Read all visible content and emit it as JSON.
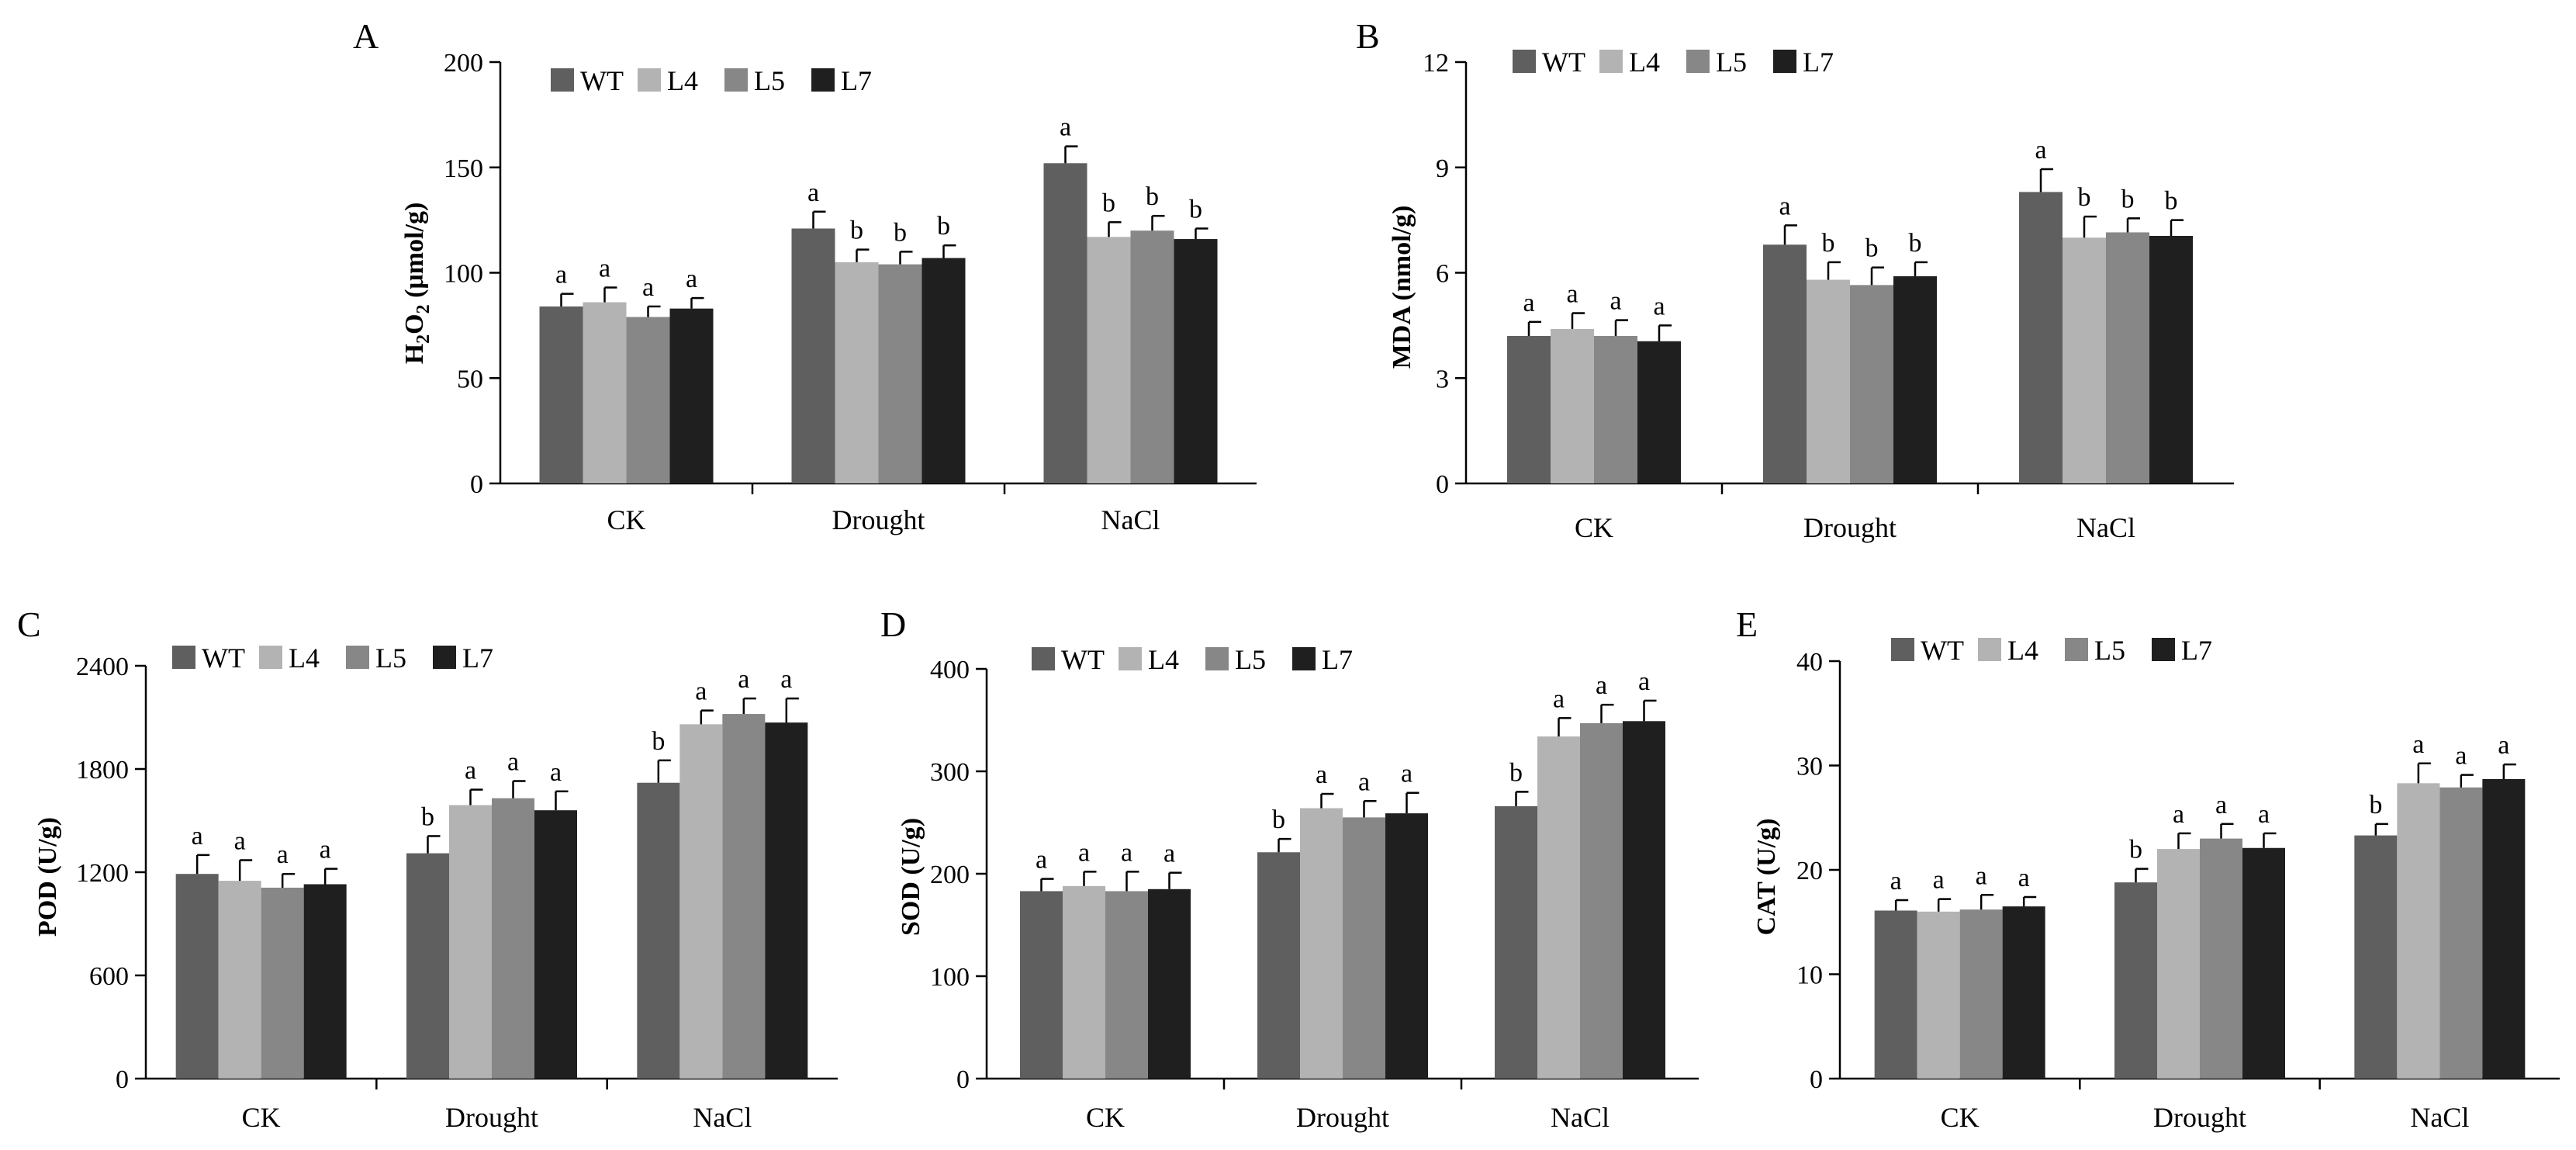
{
  "figure": {
    "groups": [
      "CK",
      "Drought",
      "NaCl"
    ],
    "legend": [
      "WT",
      "L4",
      "L5",
      "L7"
    ],
    "series_colors": [
      "#5f5f5f",
      "#b3b3b3",
      "#878787",
      "#1f1f1f"
    ]
  },
  "chart_data": [
    {
      "id": "A",
      "type": "bar",
      "panel_label": "A",
      "ylabel": "H2O2 (μmol/g)",
      "ylabel_parts": {
        "pre": "H",
        "sub1": "2",
        "mid": "O",
        "sub2": "2",
        "post": " (μmol/g)"
      },
      "categories": [
        "CK",
        "Drought",
        "NaCl"
      ],
      "ylim": [
        0,
        200
      ],
      "yticks": [
        0,
        50,
        100,
        150,
        200
      ],
      "series": [
        {
          "name": "WT",
          "values": [
            84,
            121,
            152
          ],
          "errors": [
            6,
            8,
            8
          ],
          "letters": [
            "a",
            "a",
            "a"
          ]
        },
        {
          "name": "L4",
          "values": [
            86,
            105,
            117
          ],
          "errors": [
            7,
            6,
            7
          ],
          "letters": [
            "a",
            "b",
            "b"
          ]
        },
        {
          "name": "L5",
          "values": [
            79,
            104,
            120
          ],
          "errors": [
            5,
            6,
            7
          ],
          "letters": [
            "a",
            "b",
            "b"
          ]
        },
        {
          "name": "L7",
          "values": [
            83,
            107,
            116
          ],
          "errors": [
            5,
            6,
            5
          ],
          "letters": [
            "a",
            "b",
            "b"
          ]
        }
      ]
    },
    {
      "id": "B",
      "type": "bar",
      "panel_label": "B",
      "ylabel": "MDA (nmol/g)",
      "categories": [
        "CK",
        "Drought",
        "NaCl"
      ],
      "ylim": [
        0,
        12
      ],
      "yticks": [
        0,
        3,
        6,
        9,
        12
      ],
      "series": [
        {
          "name": "WT",
          "values": [
            4.2,
            6.8,
            8.3
          ],
          "errors": [
            0.4,
            0.55,
            0.65
          ],
          "letters": [
            "a",
            "a",
            "a"
          ]
        },
        {
          "name": "L4",
          "values": [
            4.4,
            5.8,
            7.0
          ],
          "errors": [
            0.45,
            0.5,
            0.6
          ],
          "letters": [
            "a",
            "b",
            "b"
          ]
        },
        {
          "name": "L5",
          "values": [
            4.2,
            5.65,
            7.15
          ],
          "errors": [
            0.45,
            0.5,
            0.4
          ],
          "letters": [
            "a",
            "b",
            "b"
          ]
        },
        {
          "name": "L7",
          "values": [
            4.05,
            5.9,
            7.05
          ],
          "errors": [
            0.45,
            0.4,
            0.45
          ],
          "letters": [
            "a",
            "b",
            "b"
          ]
        }
      ]
    },
    {
      "id": "C",
      "type": "bar",
      "panel_label": "C",
      "ylabel": "POD (U/g)",
      "categories": [
        "CK",
        "Drought",
        "NaCl"
      ],
      "ylim": [
        0,
        2400
      ],
      "yticks": [
        0,
        600,
        1200,
        1800,
        2400
      ],
      "series": [
        {
          "name": "WT",
          "values": [
            1190,
            1310,
            1720
          ],
          "errors": [
            110,
            100,
            130
          ],
          "letters": [
            "a",
            "b",
            "b"
          ]
        },
        {
          "name": "L4",
          "values": [
            1150,
            1590,
            2060
          ],
          "errors": [
            120,
            90,
            80
          ],
          "letters": [
            "a",
            "a",
            "a"
          ]
        },
        {
          "name": "L5",
          "values": [
            1110,
            1630,
            2120
          ],
          "errors": [
            80,
            100,
            90
          ],
          "letters": [
            "a",
            "a",
            "a"
          ]
        },
        {
          "name": "L7",
          "values": [
            1130,
            1560,
            2070
          ],
          "errors": [
            90,
            110,
            140
          ],
          "letters": [
            "a",
            "a",
            "a"
          ]
        }
      ]
    },
    {
      "id": "D",
      "type": "bar",
      "panel_label": "D",
      "ylabel": "SOD (U/g)",
      "categories": [
        "CK",
        "Drought",
        "NaCl"
      ],
      "ylim": [
        0,
        400
      ],
      "yticks": [
        0,
        100,
        200,
        300,
        400
      ],
      "series": [
        {
          "name": "WT",
          "values": [
            183,
            221,
            266
          ],
          "errors": [
            12,
            13,
            14
          ],
          "letters": [
            "a",
            "b",
            "b"
          ]
        },
        {
          "name": "L4",
          "values": [
            188,
            264,
            334
          ],
          "errors": [
            14,
            14,
            18
          ],
          "letters": [
            "a",
            "a",
            "a"
          ]
        },
        {
          "name": "L5",
          "values": [
            183,
            255,
            347
          ],
          "errors": [
            19,
            16,
            18
          ],
          "letters": [
            "a",
            "a",
            "a"
          ]
        },
        {
          "name": "L7",
          "values": [
            185,
            259,
            349
          ],
          "errors": [
            16,
            20,
            20
          ],
          "letters": [
            "a",
            "a",
            "a"
          ]
        }
      ]
    },
    {
      "id": "E",
      "type": "bar",
      "panel_label": "E",
      "ylabel": "CAT (U/g)",
      "categories": [
        "CK",
        "Drought",
        "NaCl"
      ],
      "ylim": [
        0,
        40
      ],
      "yticks": [
        0,
        10,
        20,
        30,
        40
      ],
      "series": [
        {
          "name": "WT",
          "values": [
            16.1,
            18.8,
            23.3
          ],
          "errors": [
            1.0,
            1.3,
            1.1
          ],
          "letters": [
            "a",
            "b",
            "b"
          ]
        },
        {
          "name": "L4",
          "values": [
            16.0,
            22.0,
            28.3
          ],
          "errors": [
            1.2,
            1.5,
            1.9
          ],
          "letters": [
            "a",
            "a",
            "a"
          ]
        },
        {
          "name": "L5",
          "values": [
            16.2,
            23.0,
            27.9
          ],
          "errors": [
            1.4,
            1.4,
            1.2
          ],
          "letters": [
            "a",
            "a",
            "a"
          ]
        },
        {
          "name": "L7",
          "values": [
            16.5,
            22.1,
            28.7
          ],
          "errors": [
            0.9,
            1.4,
            1.4
          ],
          "letters": [
            "a",
            "a",
            "a"
          ]
        }
      ]
    }
  ]
}
